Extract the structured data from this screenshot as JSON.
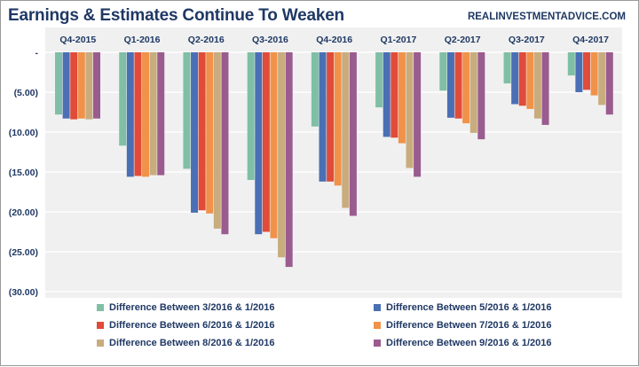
{
  "header": {
    "title": "Earnings & Estimates Continue To Weaken",
    "source": "REALINVESTMENTADVICE.COM"
  },
  "chart_data": {
    "type": "bar",
    "title": "Earnings & Estimates Continue To Weaken",
    "categories": [
      "Q4-2015",
      "Q1-2016",
      "Q2-2016",
      "Q3-2016",
      "Q4-2016",
      "Q1-2017",
      "Q2-2017",
      "Q3-2017",
      "Q4-2017"
    ],
    "series": [
      {
        "name": "Difference Between 3/2016 & 1/2016",
        "color": "#7fbfa6",
        "values": [
          -7.8,
          -11.7,
          -14.6,
          -16.0,
          -9.3,
          -6.9,
          -4.8,
          -3.9,
          -2.9
        ]
      },
      {
        "name": "Difference Between 5/2016 & 1/2016",
        "color": "#4a6fb5",
        "values": [
          -8.3,
          -15.6,
          -20.1,
          -22.8,
          -16.2,
          -10.6,
          -8.2,
          -6.5,
          -5.0
        ]
      },
      {
        "name": "Difference Between 6/2016 & 1/2016",
        "color": "#e04b3a",
        "values": [
          -8.4,
          -15.5,
          -19.8,
          -22.5,
          -16.2,
          -10.7,
          -8.3,
          -6.7,
          -4.7
        ]
      },
      {
        "name": "Difference Between 7/2016 & 1/2016",
        "color": "#f0924a",
        "values": [
          -8.3,
          -15.6,
          -20.2,
          -23.3,
          -16.7,
          -11.4,
          -8.9,
          -7.1,
          -5.4
        ]
      },
      {
        "name": "Difference Between 8/2016 & 1/2016",
        "color": "#c9ac7e",
        "values": [
          -8.4,
          -15.4,
          -22.1,
          -25.7,
          -19.5,
          -14.5,
          -10.1,
          -8.3,
          -6.6
        ]
      },
      {
        "name": "Difference Between 9/2016 & 1/2016",
        "color": "#9a5b8f",
        "values": [
          -8.3,
          -15.4,
          -22.8,
          -26.9,
          -20.5,
          -15.6,
          -10.9,
          -9.1,
          -7.8
        ]
      }
    ],
    "ylim": [
      -30,
      0
    ],
    "yticks": [
      0,
      -5,
      -10,
      -15,
      -20,
      -25,
      -30
    ],
    "ytick_labels": [
      "-",
      "(5.00)",
      "(10.00)",
      "(15.00)",
      "(20.00)",
      "(25.00)",
      "(30.00)"
    ],
    "grid": true,
    "legend_position": "bottom",
    "xlabel": "",
    "ylabel": ""
  }
}
